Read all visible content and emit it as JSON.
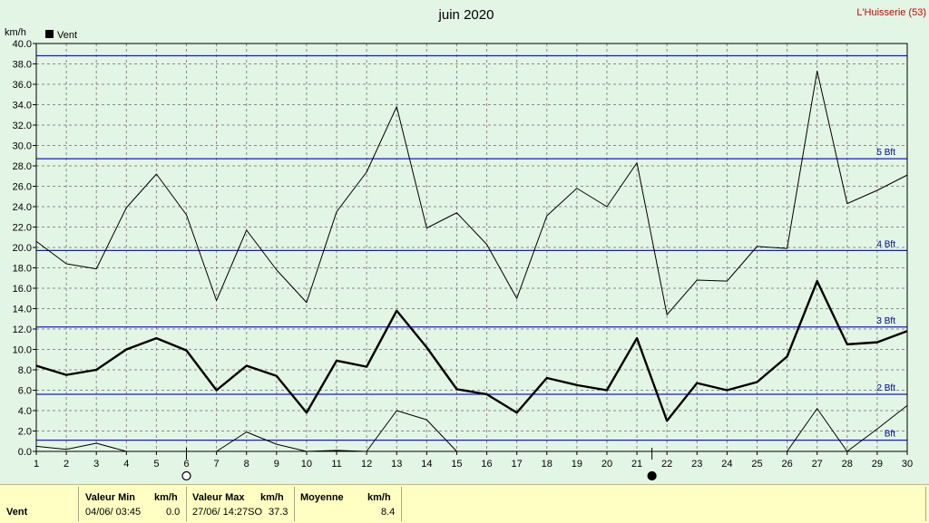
{
  "header": {
    "title": "juin 2020",
    "station": "L'Huisserie (53)",
    "y_unit": "km/h"
  },
  "legend": {
    "label": "Vent",
    "color": "#000000"
  },
  "beaufort": [
    {
      "label": "Bft",
      "value": 1.1
    },
    {
      "label": "2 Bft",
      "value": 5.6
    },
    {
      "label": "3 Bft",
      "value": 12.2
    },
    {
      "label": "4 Bft",
      "value": 19.7
    },
    {
      "label": "5 Bft",
      "value": 28.7
    },
    {
      "label": "",
      "value": 38.8
    }
  ],
  "moon_markers": [
    {
      "day": 6,
      "phase": "full"
    },
    {
      "day": 21.5,
      "phase": "new"
    }
  ],
  "chart_data": {
    "type": "line",
    "title": "juin 2020",
    "ylabel": "km/h",
    "xlim": [
      1,
      30
    ],
    "ylim": [
      0,
      40
    ],
    "x": [
      1,
      2,
      3,
      4,
      5,
      6,
      7,
      8,
      9,
      10,
      11,
      12,
      13,
      14,
      15,
      16,
      17,
      18,
      19,
      20,
      21,
      22,
      23,
      24,
      25,
      26,
      27,
      28,
      29,
      30
    ],
    "x_tick_labels": [
      "1",
      "2",
      "3",
      "4",
      "5",
      "6",
      "7",
      "8",
      "9",
      "10",
      "11",
      "12",
      "13",
      "14",
      "15",
      "16",
      "17",
      "18",
      "19",
      "20",
      "21",
      "22",
      "23",
      "24",
      "25",
      "26",
      "27",
      "28",
      "29",
      "30"
    ],
    "y_tick_labels": [
      "0.0",
      "2.0",
      "4.0",
      "6.0",
      "8.0",
      "10.0",
      "12.0",
      "14.0",
      "16.0",
      "18.0",
      "20.0",
      "22.0",
      "24.0",
      "26.0",
      "28.0",
      "30.0",
      "32.0",
      "34.0",
      "36.0",
      "38.0",
      "40.0"
    ],
    "grid": true,
    "legend_position": "top-left",
    "series": [
      {
        "name": "Vent",
        "role": "max",
        "values": [
          20.6,
          18.4,
          17.9,
          23.9,
          27.2,
          23.2,
          14.8,
          21.7,
          17.8,
          14.6,
          23.5,
          27.4,
          33.8,
          21.9,
          23.4,
          20.3,
          15.0,
          23.1,
          25.8,
          24.0,
          28.3,
          13.4,
          16.8,
          16.7,
          20.1,
          19.9,
          37.3,
          24.3,
          25.6,
          27.1
        ]
      },
      {
        "name": "Vent",
        "role": "mean",
        "values": [
          8.4,
          7.5,
          8.0,
          10.0,
          11.1,
          9.9,
          6.0,
          8.4,
          7.4,
          3.8,
          8.9,
          8.3,
          13.8,
          10.2,
          6.1,
          5.6,
          3.8,
          7.2,
          6.5,
          6.0,
          11.1,
          3.0,
          6.7,
          6.0,
          6.8,
          9.3,
          16.7,
          10.5,
          10.7,
          11.8
        ]
      },
      {
        "name": "Vent",
        "role": "min",
        "values": [
          0.5,
          0.2,
          0.8,
          0.0,
          0.0,
          0.0,
          0.0,
          1.9,
          0.7,
          0.0,
          0.1,
          0.0,
          4.0,
          3.1,
          0.0,
          0.0,
          0.0,
          0.0,
          0.0,
          0.0,
          0.0,
          0.0,
          0.0,
          0.0,
          0.0,
          0.0,
          4.2,
          0.0,
          2.2,
          4.5
        ]
      }
    ]
  },
  "stats": {
    "row_label": "Vent",
    "min": {
      "header": "Valeur Min",
      "unit": "km/h",
      "date": "04/06/  03:45",
      "value": "0.0"
    },
    "max": {
      "header": "Valeur Max",
      "unit": "km/h",
      "date": "27/06/  14:27SO",
      "value": "37.3"
    },
    "avg": {
      "header": "Moyenne",
      "unit": "km/h",
      "value": "8.4"
    }
  }
}
